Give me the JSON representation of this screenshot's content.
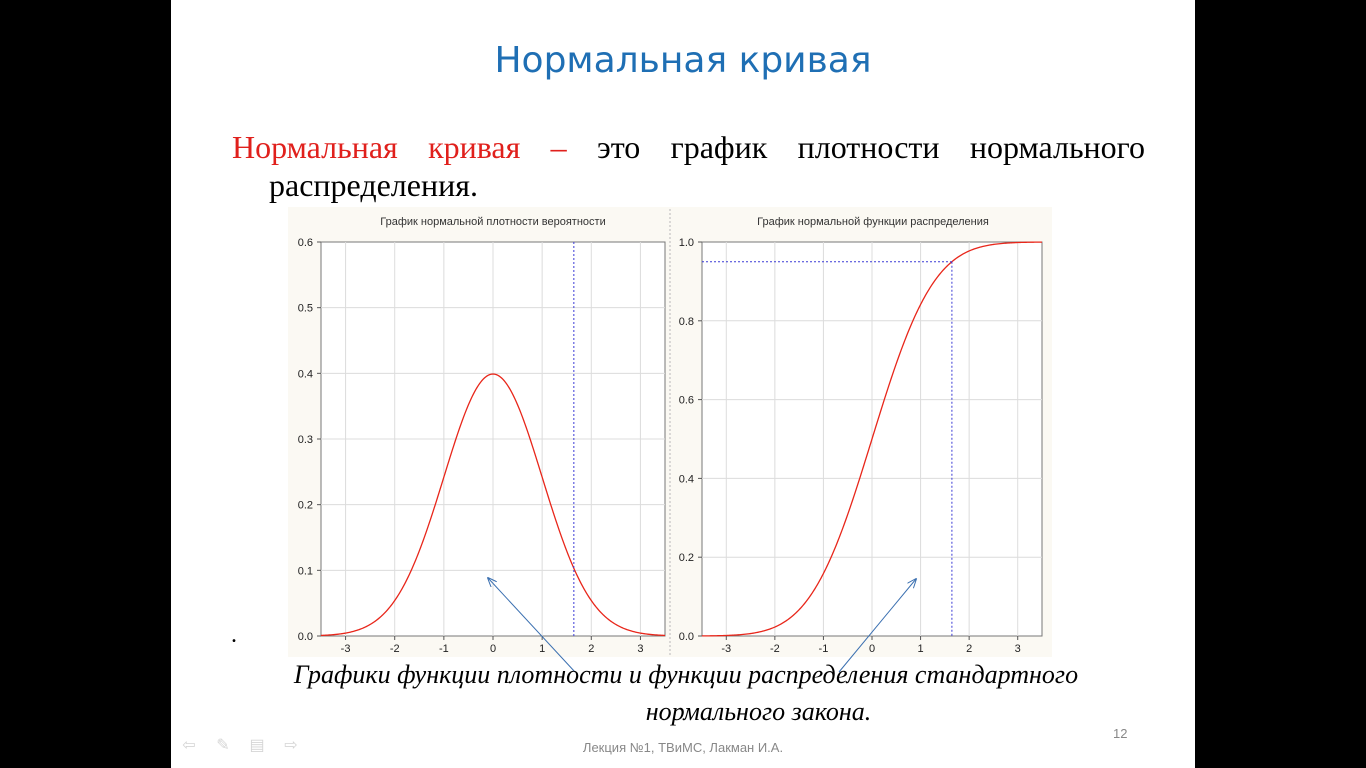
{
  "slide": {
    "title": "Нормальная кривая",
    "definition_term": "Нормальная кривая",
    "definition_dash": " – ",
    "definition_rest": "это график плотности нормального",
    "definition_line2": "распределения.",
    "bullet_dot": ".",
    "caption_line1": "Графики функции плотности и функции распределения  стандартного",
    "caption_line2": "нормального закона.",
    "footer": "Лекция №1, ТВиМС, Лакман И.А.",
    "page_number": "12"
  },
  "colors": {
    "title": "#1f6fb4",
    "term": "#e0201c",
    "curve": "#e8261a",
    "marker": "#3b3bd6",
    "arrow": "#3a6fb0"
  },
  "navigation": {
    "icons": [
      "back-arrow-icon",
      "pen-icon",
      "menu-icon",
      "forward-arrow-icon"
    ]
  },
  "chart_data": [
    {
      "type": "line",
      "title": "График нормальной плотности вероятности",
      "xlim": [
        -3.5,
        3.5
      ],
      "ylim": [
        0,
        0.6
      ],
      "xticks": [
        "-3",
        "-2",
        "-1",
        "0",
        "1",
        "2",
        "3"
      ],
      "yticks": [
        "0.0",
        "0.1",
        "0.2",
        "0.3",
        "0.4",
        "0.5",
        "0.6"
      ],
      "grid": true,
      "series": [
        {
          "function": "normal_pdf",
          "mean": 0,
          "sd": 1
        }
      ],
      "marker_x": 1.645
    },
    {
      "type": "line",
      "title": "График нормальной функции распределения",
      "xlim": [
        -3.5,
        3.5
      ],
      "ylim": [
        0,
        1.0
      ],
      "xticks": [
        "-3",
        "-2",
        "-1",
        "0",
        "1",
        "2",
        "3"
      ],
      "yticks": [
        "0.0",
        "0.2",
        "0.4",
        "0.6",
        "0.8",
        "1.0"
      ],
      "grid": true,
      "series": [
        {
          "function": "normal_cdf",
          "mean": 0,
          "sd": 1
        }
      ],
      "marker_x": 1.645,
      "marker_y": 0.95
    }
  ]
}
